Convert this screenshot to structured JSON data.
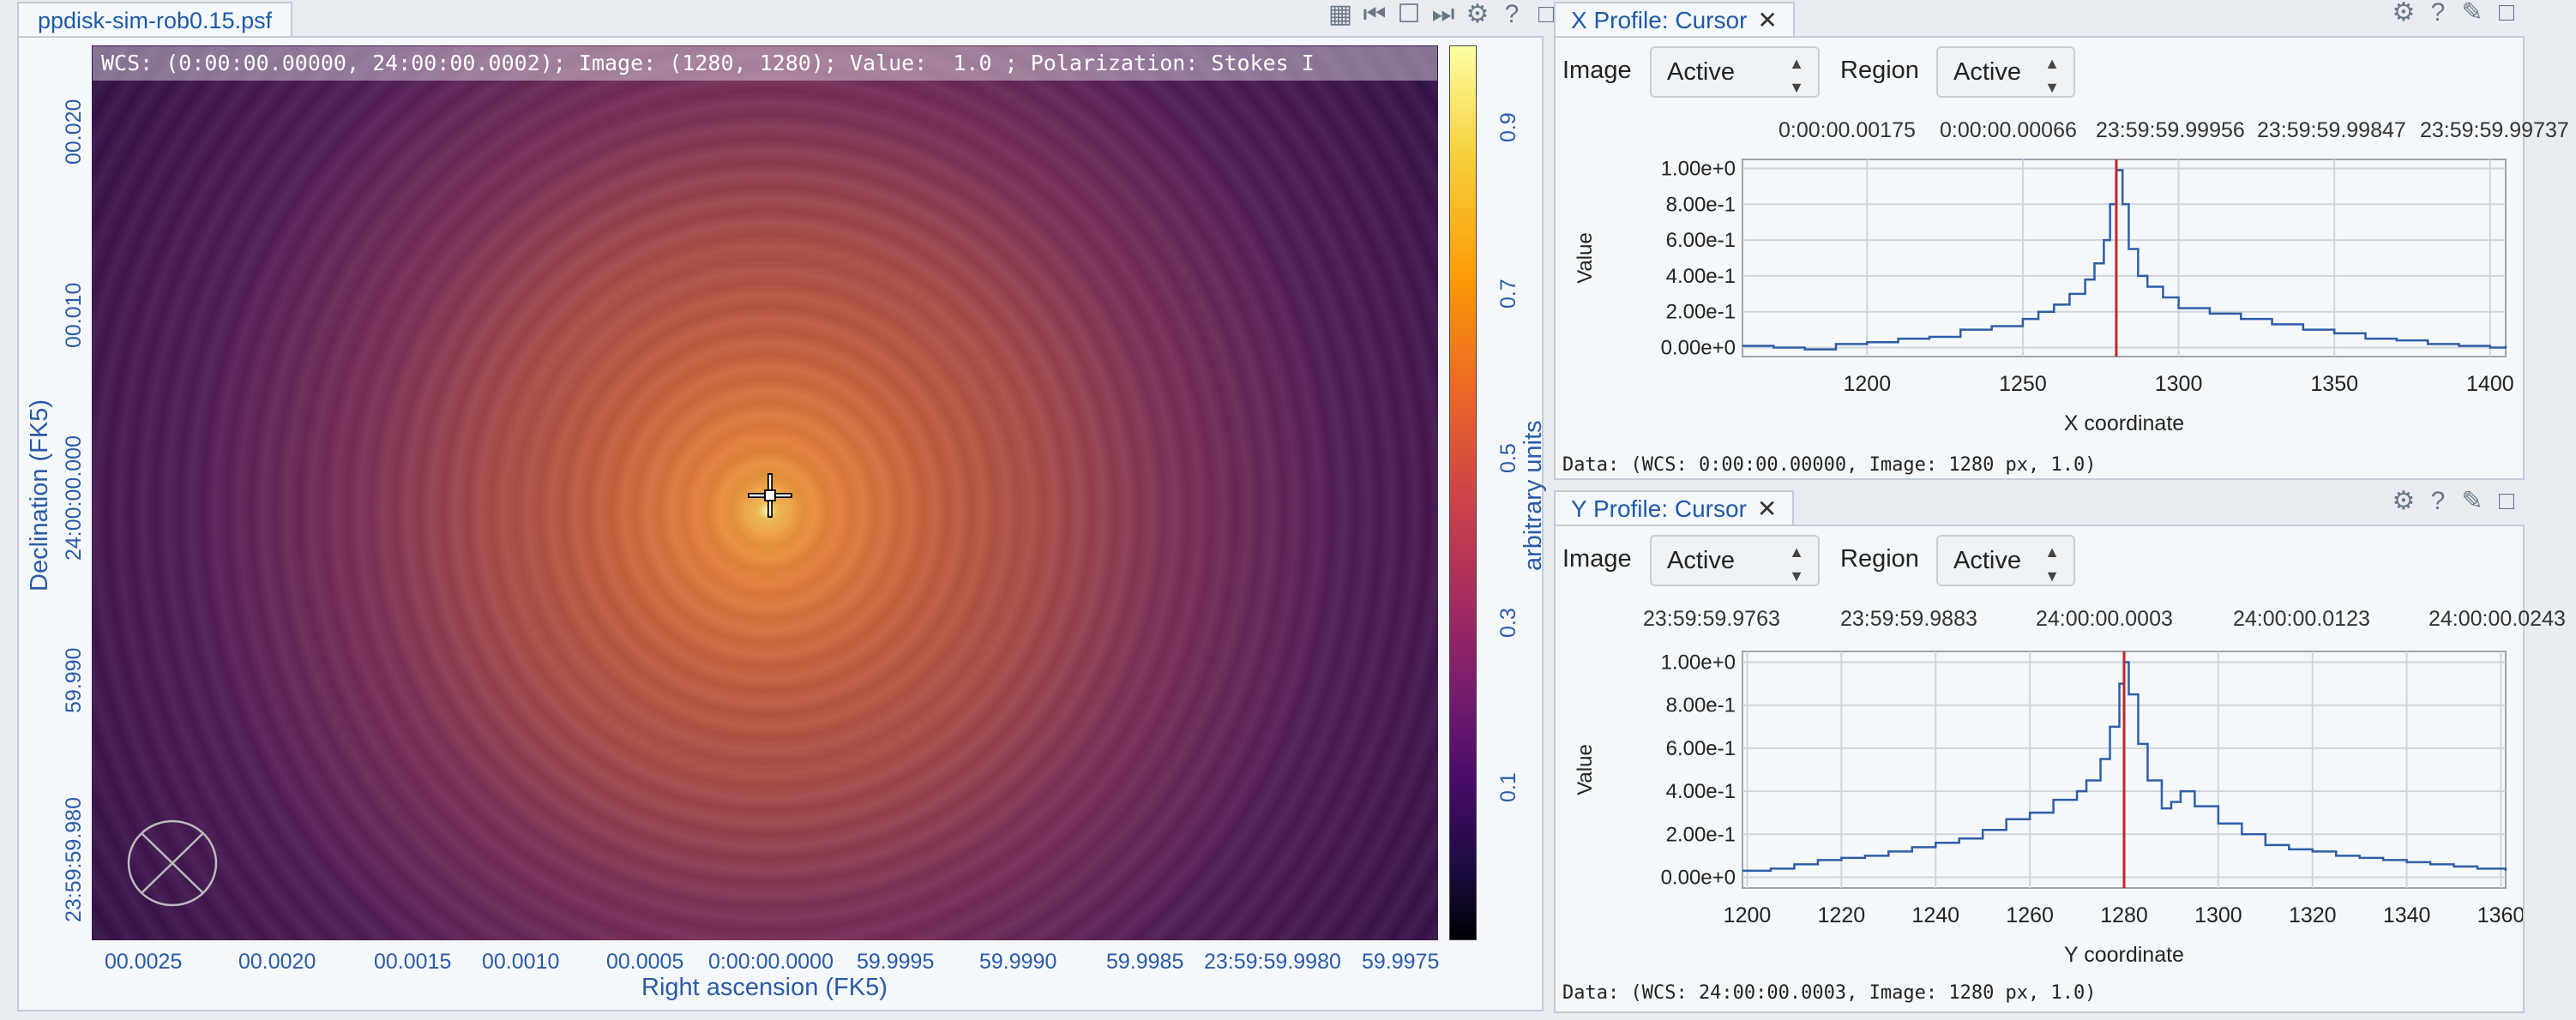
{
  "viewer": {
    "tab_title": "ppdisk-sim-rob0.15.psf",
    "wcs_bar": "WCS: (0:00:00.00000, 24:00:00.0002); Image: (1280, 1280); Value:  1.0 ; Polarization: Stokes I",
    "x_axis_label": "Right ascension (FK5)",
    "y_axis_label": "Declination (FK5)",
    "x_ticks": [
      "00.0025",
      "00.0020",
      "00.0015",
      "00.0010",
      "00.0005",
      "0:00:00.0000",
      "59.9995",
      "59.9990",
      "59.9985",
      "23:59:59.9980",
      "59.9975"
    ],
    "y_ticks": [
      "00.020",
      "00.010",
      "24:00:00.000",
      "59.990",
      "23:59:59.980"
    ],
    "colorbar_label": "arbitrary units",
    "colorbar_ticks": [
      "0.9",
      "0.7",
      "0.5",
      "0.3",
      "0.1"
    ]
  },
  "x_profile": {
    "tab_title": "X Profile: Cursor",
    "image_label": "Image",
    "image_value": "Active",
    "region_label": "Region",
    "region_value": "Active",
    "top_ticks": [
      "0:00:00.00175",
      "0:00:00.00066",
      "23:59:59.99956",
      "23:59:59.99847",
      "23:59:59.99737"
    ],
    "y_ticks": [
      "1.00e+0",
      "8.00e-1",
      "6.00e-1",
      "4.00e-1",
      "2.00e-1",
      "0.00e+0"
    ],
    "x_ticks": [
      "1200",
      "1250",
      "1300",
      "1350",
      "1400"
    ],
    "y_label": "Value",
    "x_label": "X coordinate",
    "data_text": "Data: (WCS: 0:00:00.00000, Image: 1280 px, 1.0)"
  },
  "y_profile": {
    "tab_title": "Y Profile: Cursor",
    "image_label": "Image",
    "image_value": "Active",
    "region_label": "Region",
    "region_value": "Active",
    "top_ticks": [
      "23:59:59.9763",
      "23:59:59.9883",
      "24:00:00.0003",
      "24:00:00.0123",
      "24:00:00.0243"
    ],
    "y_ticks": [
      "1.00e+0",
      "8.00e-1",
      "6.00e-1",
      "4.00e-1",
      "2.00e-1",
      "0.00e+0"
    ],
    "x_ticks": [
      "1200",
      "1220",
      "1240",
      "1260",
      "1280",
      "1300",
      "1320",
      "1340",
      "1360"
    ],
    "y_label": "Value",
    "x_label": "Y coordinate",
    "data_text": "Data: (WCS: 24:00:00.0003, Image: 1280 px, 1.0)"
  },
  "icons": [
    "grid-icon",
    "first-frame-icon",
    "single-frame-icon",
    "next-frame-icon",
    "gear-icon",
    "help-icon",
    "maximize-icon",
    "pin-icon",
    "close-icon"
  ],
  "chart_data": [
    {
      "type": "line",
      "title": "X Profile: Cursor",
      "xlabel": "X coordinate",
      "ylabel": "Value",
      "xlim": [
        1160,
        1405
      ],
      "ylim": [
        -0.05,
        1.05
      ],
      "cursor_x": 1280,
      "series": [
        {
          "x": [
            1160,
            1170,
            1180,
            1190,
            1200,
            1210,
            1220,
            1230,
            1240,
            1250,
            1255,
            1260,
            1265,
            1270,
            1273,
            1276,
            1278,
            1280,
            1282,
            1284,
            1287,
            1290,
            1295,
            1300,
            1310,
            1320,
            1330,
            1340,
            1350,
            1360,
            1370,
            1380,
            1390,
            1400,
            1405
          ],
          "values": [
            0.01,
            0.0,
            -0.01,
            0.02,
            0.03,
            0.05,
            0.06,
            0.1,
            0.12,
            0.16,
            0.2,
            0.24,
            0.3,
            0.38,
            0.47,
            0.6,
            0.8,
            0.99,
            0.8,
            0.55,
            0.4,
            0.34,
            0.28,
            0.22,
            0.19,
            0.16,
            0.13,
            0.1,
            0.08,
            0.05,
            0.04,
            0.02,
            0.01,
            0.0,
            0.01
          ]
        }
      ]
    },
    {
      "type": "line",
      "title": "Y Profile: Cursor",
      "xlabel": "Y coordinate",
      "ylabel": "Value",
      "xlim": [
        1199,
        1361
      ],
      "ylim": [
        -0.05,
        1.05
      ],
      "cursor_x": 1280,
      "series": [
        {
          "x": [
            1199,
            1205,
            1210,
            1215,
            1220,
            1225,
            1230,
            1235,
            1240,
            1245,
            1250,
            1255,
            1260,
            1265,
            1270,
            1272,
            1275,
            1277,
            1279,
            1280,
            1281,
            1283,
            1285,
            1288,
            1290,
            1292,
            1295,
            1300,
            1305,
            1310,
            1315,
            1320,
            1325,
            1330,
            1335,
            1340,
            1345,
            1350,
            1355,
            1361
          ],
          "values": [
            0.03,
            0.04,
            0.06,
            0.08,
            0.09,
            0.1,
            0.12,
            0.14,
            0.16,
            0.18,
            0.22,
            0.27,
            0.3,
            0.36,
            0.4,
            0.45,
            0.55,
            0.7,
            0.9,
            1.0,
            0.85,
            0.62,
            0.45,
            0.32,
            0.35,
            0.4,
            0.33,
            0.25,
            0.2,
            0.15,
            0.13,
            0.12,
            0.1,
            0.09,
            0.08,
            0.07,
            0.06,
            0.05,
            0.04,
            0.03
          ]
        }
      ]
    }
  ]
}
